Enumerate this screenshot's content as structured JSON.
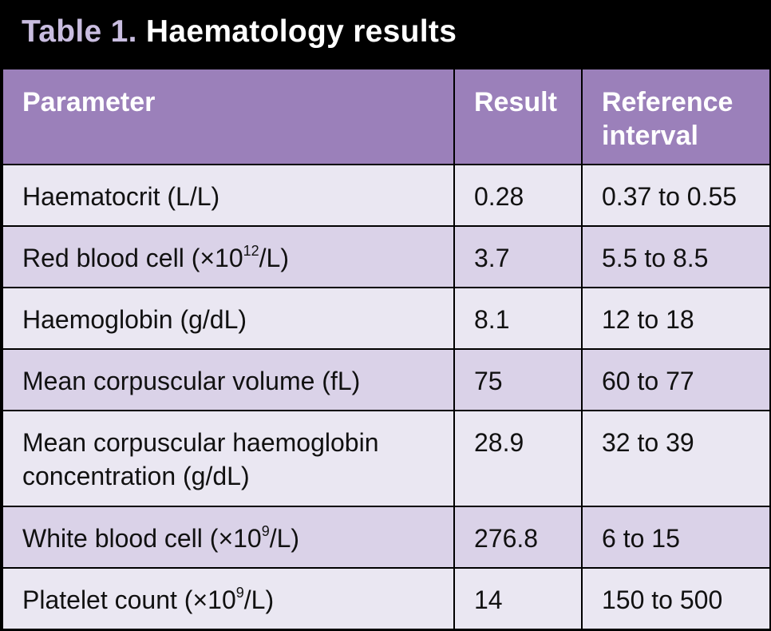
{
  "title": {
    "label": "Table 1.",
    "text": "Haematology results"
  },
  "table": {
    "headers": [
      "Parameter",
      "Result",
      "Reference interval"
    ],
    "rows": [
      {
        "parameter": "Haematocrit (L/L)",
        "result": "0.28",
        "reference": "0.37 to 0.55"
      },
      {
        "parameter_pre": "Red blood cell (×10",
        "parameter_sup": "12",
        "parameter_post": "/L)",
        "result": "3.7",
        "reference": "5.5 to 8.5"
      },
      {
        "parameter": "Haemoglobin (g/dL)",
        "result": "8.1",
        "reference": "12 to 18"
      },
      {
        "parameter": "Mean corpuscular volume (fL)",
        "result": "75",
        "reference": "60 to 77"
      },
      {
        "parameter_line1": "Mean corpuscular haemoglobin",
        "parameter_line2": "concentration (g/dL)",
        "result": "28.9",
        "reference": "32 to 39"
      },
      {
        "parameter_pre": "White blood cell (×10",
        "parameter_sup": "9",
        "parameter_post": "/L)",
        "result": "276.8",
        "reference": "6 to 15"
      },
      {
        "parameter_pre": "Platelet count (×10",
        "parameter_sup": "9",
        "parameter_post": "/L)",
        "result": "14",
        "reference": "150 to 500"
      }
    ]
  },
  "colors": {
    "header_bg": "#9b80ba",
    "row_light": "#eae7f2",
    "row_dark": "#dad2e8",
    "title_accent": "#c9bde0"
  }
}
